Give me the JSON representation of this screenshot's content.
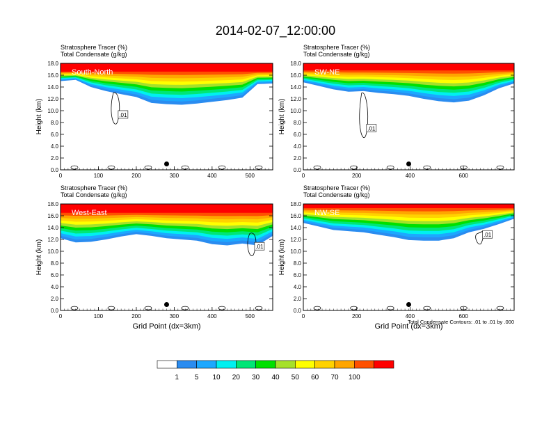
{
  "title": "2014-02-07_12:00:00",
  "colors": {
    "contour_line": "#000000",
    "fill_levels": [
      "#ffffff",
      "#2a8cf0",
      "#1ca8ff",
      "#00f0f0",
      "#00e676",
      "#00e000",
      "#a6e12a",
      "#ffff00",
      "#ffd200",
      "#ffa500",
      "#ff5000",
      "#ff0000"
    ]
  },
  "chart_data": [
    {
      "type": "heatmap",
      "panel_label": "South-North",
      "field_label_1": "Stratosphere Tracer   (%)",
      "field_label_2": "Total Condensate   (g/kg)",
      "ylabel": "Height (km)",
      "xlabel": "",
      "xlim": [
        0,
        560
      ],
      "ylim": [
        0,
        18
      ],
      "xticks": [
        0,
        100,
        200,
        300,
        400,
        500
      ],
      "yticks": [
        "0.0",
        "2.0",
        "4.0",
        "6.0",
        "8.0",
        "10.0",
        "12.0",
        "14.0",
        "16.0",
        "18.0"
      ],
      "contour_label": ".01",
      "contour_label_pos": [
        165,
        9.3
      ],
      "point_marker": [
        280,
        1.0
      ],
      "red_base_km": 16.6,
      "tracer_base_km": [
        15.0,
        15.2,
        14.0,
        13.3,
        12.8,
        12.3,
        11.3,
        11.1,
        11.0,
        11.2,
        11.5,
        11.8,
        12.2,
        14.5,
        14.6
      ]
    },
    {
      "type": "heatmap",
      "panel_label": "SW-NE",
      "field_label_1": "Stratosphere Tracer   (%)",
      "field_label_2": "Total Condensate   (g/kg)",
      "ylabel": "Height (km)",
      "xlabel": "",
      "xlim": [
        0,
        790
      ],
      "ylim": [
        0,
        18
      ],
      "xticks": [
        0,
        200,
        400,
        600
      ],
      "yticks": [
        "0.0",
        "2.0",
        "4.0",
        "6.0",
        "8.0",
        "10.0",
        "12.0",
        "14.0",
        "16.0",
        "18.0"
      ],
      "contour_label": ".01",
      "contour_label_pos": [
        255,
        7.0
      ],
      "point_marker": [
        395,
        1.0
      ],
      "red_base_km": 16.8,
      "tracer_base_km": [
        14.8,
        14.2,
        13.6,
        13.2,
        13.3,
        13.0,
        12.8,
        12.5,
        12.0,
        11.6,
        11.4,
        11.7,
        12.6,
        13.8,
        14.6
      ]
    },
    {
      "type": "heatmap",
      "panel_label": "West-East",
      "field_label_1": "Stratosphere Tracer   (%)",
      "field_label_2": "Total Condensate   (g/kg)",
      "ylabel": "Height (km)",
      "xlabel": "Grid Point (dx=3km)",
      "xlim": [
        0,
        560
      ],
      "ylim": [
        0,
        18
      ],
      "xticks": [
        0,
        100,
        200,
        300,
        400,
        500
      ],
      "yticks": [
        "0.0",
        "2.0",
        "4.0",
        "6.0",
        "8.0",
        "10.0",
        "12.0",
        "14.0",
        "16.0",
        "18.0"
      ],
      "contour_label": ".01",
      "contour_label_pos": [
        525,
        10.8
      ],
      "point_marker": [
        280,
        1.0
      ],
      "red_base_km": 16.5,
      "tracer_base_km": [
        12.2,
        11.5,
        11.6,
        12.0,
        12.5,
        12.9,
        12.6,
        12.2,
        12.0,
        11.8,
        11.2,
        11.0,
        11.3,
        11.0,
        12.6
      ]
    },
    {
      "type": "heatmap",
      "panel_label": "NW-SE",
      "field_label_1": "Stratosphere Tracer   (%)",
      "field_label_2": "Total Condensate   (g/kg)",
      "ylabel": "Height (km)",
      "xlabel": "Grid Point (dx=3km)",
      "xlim": [
        0,
        790
      ],
      "ylim": [
        0,
        18
      ],
      "xticks": [
        0,
        200,
        400,
        600
      ],
      "yticks": [
        "0.0",
        "2.0",
        "4.0",
        "6.0",
        "8.0",
        "10.0",
        "12.0",
        "14.0",
        "16.0",
        "18.0"
      ],
      "contour_label": ".01",
      "contour_label_pos": [
        690,
        12.8
      ],
      "point_marker": [
        395,
        1.0
      ],
      "red_base_km": 17.3,
      "tracer_base_km": [
        14.8,
        14.2,
        13.6,
        13.4,
        13.2,
        12.8,
        12.4,
        11.9,
        11.8,
        11.8,
        12.2,
        13.2,
        13.8,
        14.6,
        15.5
      ],
      "footnote": "Total Condensate Contours: .01 to .01 by .000"
    }
  ],
  "colorbar": {
    "labels": [
      "1",
      "5",
      "10",
      "20",
      "30",
      "40",
      "50",
      "60",
      "70",
      "100"
    ],
    "colors": [
      "#ffffff",
      "#2a8cf0",
      "#1ca8ff",
      "#00f0f0",
      "#00e676",
      "#00e000",
      "#a6e12a",
      "#ffff00",
      "#ffd200",
      "#ffa500",
      "#ff5000",
      "#ff0000"
    ]
  }
}
